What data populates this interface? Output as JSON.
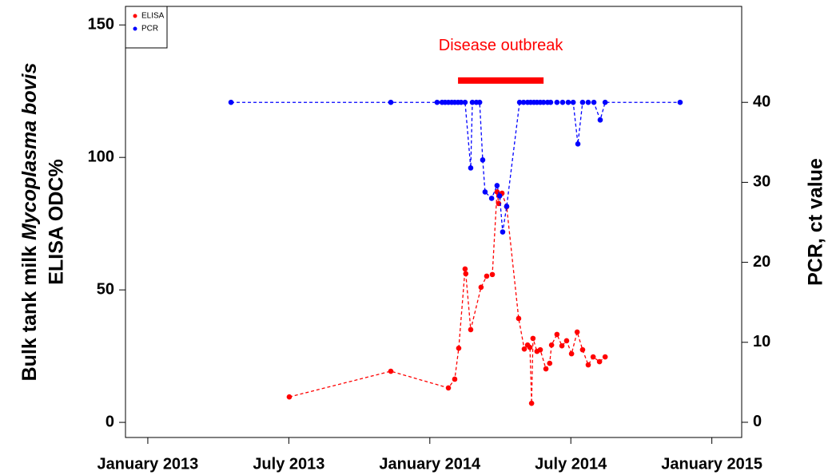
{
  "chart_data": {
    "type": "line",
    "ylabel": [
      "Bulk tank milk ",
      "Mycoplasma bovis",
      "ELISA ODC%"
    ],
    "y2label": "PCR, ct value",
    "annotation": {
      "text": "Disease outbreak",
      "color": "#ff0000",
      "x": [
        13.2,
        16.84
      ],
      "y": 129
    },
    "xlim": [
      -0.95,
      25.27
    ],
    "xticks": [
      {
        "value": 0,
        "label": "January 2013"
      },
      {
        "value": 6,
        "label": "July 2013"
      },
      {
        "value": 12,
        "label": "January 2014"
      },
      {
        "value": 18,
        "label": "July 2014"
      },
      {
        "value": 24,
        "label": "January 2015"
      }
    ],
    "ylim": [
      -5.7,
      157
    ],
    "yticks": [
      0,
      50,
      100,
      150
    ],
    "y2lim": [
      -1.9,
      52
    ],
    "y2ticks": [
      0,
      10,
      20,
      30,
      40
    ],
    "legend": "top-left",
    "series": [
      {
        "name": "ELISA",
        "color": "#ff0000",
        "axis": "y",
        "x": [
          6.02,
          10.34,
          12.79,
          13.06,
          13.23,
          13.5,
          13.53,
          13.74,
          14.18,
          14.42,
          14.66,
          14.86,
          14.93,
          15.07,
          15.27,
          15.78,
          16.02,
          16.16,
          16.26,
          16.33,
          16.39,
          16.56,
          16.7,
          16.94,
          17.1,
          17.18,
          17.41,
          17.62,
          17.82,
          18.03,
          18.27,
          18.5,
          18.74,
          18.95,
          19.22,
          19.46
        ],
        "values": [
          9.6,
          19.3,
          13,
          16.3,
          28,
          57.9,
          56.1,
          35,
          51,
          55.2,
          55.8,
          87,
          82.6,
          86.5,
          81.4,
          39.2,
          27.7,
          29.2,
          28.3,
          7.2,
          31.7,
          26.8,
          27.4,
          20.2,
          22.3,
          29.2,
          33.2,
          28.9,
          30.8,
          25.9,
          34.1,
          27.4,
          21.7,
          24.7,
          22.9,
          24.7
        ]
      },
      {
        "name": "PCR",
        "color": "#0000ff",
        "axis": "y2",
        "x": [
          3.54,
          10.34,
          12.31,
          12.52,
          12.65,
          12.79,
          12.93,
          13.06,
          13.2,
          13.33,
          13.5,
          13.74,
          13.81,
          13.98,
          14.12,
          14.25,
          14.35,
          14.63,
          14.86,
          14.97,
          15.1,
          15.27,
          15.82,
          15.99,
          16.16,
          16.29,
          16.43,
          16.56,
          16.7,
          16.84,
          17.01,
          17.14,
          17.41,
          17.65,
          17.89,
          18.1,
          18.3,
          18.5,
          18.74,
          18.98,
          19.25,
          19.46,
          22.65
        ],
        "values": [
          40,
          40,
          40,
          40,
          40,
          40,
          40,
          40,
          40,
          40,
          40,
          31.8,
          40,
          40,
          40,
          32.8,
          28.8,
          28,
          29.6,
          28.3,
          23.8,
          27,
          40,
          40,
          40,
          40,
          40,
          40,
          40,
          40,
          40,
          40,
          40,
          40,
          40,
          40,
          34.8,
          40,
          40,
          40,
          37.8,
          40,
          40
        ]
      }
    ]
  }
}
